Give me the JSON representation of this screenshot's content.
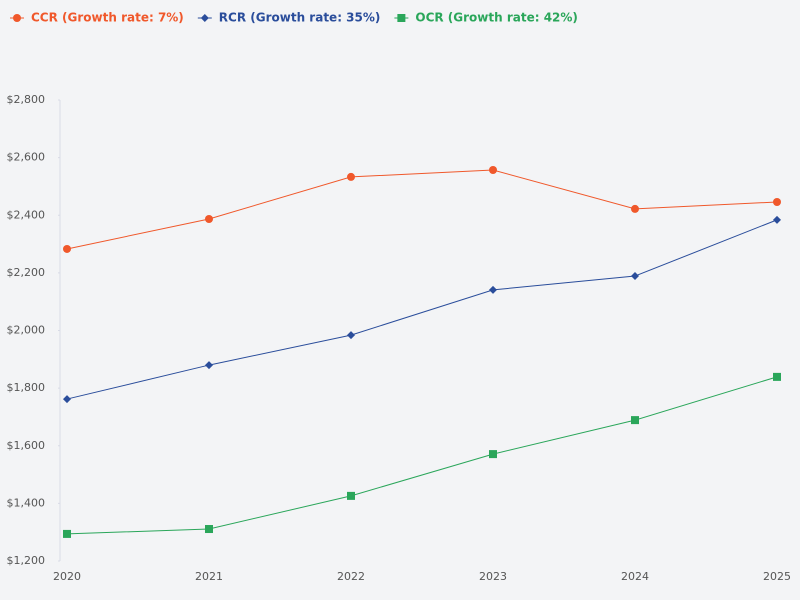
{
  "chart_data": {
    "type": "line",
    "categories": [
      "2020",
      "2021",
      "2022",
      "2023",
      "2024",
      "2025"
    ],
    "series": [
      {
        "name": "CCR (Growth rate: 7%)",
        "color": "#f0582b",
        "marker": "circle",
        "values": [
          2283,
          2387,
          2533,
          2557,
          2422,
          2446
        ]
      },
      {
        "name": "RCR (Growth rate: 35%)",
        "color": "#2a4d9b",
        "marker": "diamond",
        "values": [
          1762,
          1880,
          1984,
          2141,
          2189,
          2384
        ]
      },
      {
        "name": "OCR (Growth rate: 42%)",
        "color": "#2aa65a",
        "marker": "square",
        "values": [
          1294,
          1311,
          1426,
          1571,
          1689,
          1839
        ]
      }
    ],
    "ylim": [
      1200,
      2800
    ],
    "yticks": [
      {
        "value": 1200,
        "label": "$1,200"
      },
      {
        "value": 1400,
        "label": "$1,400"
      },
      {
        "value": 1600,
        "label": "$1,600"
      },
      {
        "value": 1800,
        "label": "$1,800"
      },
      {
        "value": 2000,
        "label": "$2,000"
      },
      {
        "value": 2200,
        "label": "$2,200"
      },
      {
        "value": 2400,
        "label": "$2,400"
      },
      {
        "value": 2600,
        "label": "$2,600"
      },
      {
        "value": 2800,
        "label": "$2,800"
      }
    ],
    "legend": "top-left"
  }
}
